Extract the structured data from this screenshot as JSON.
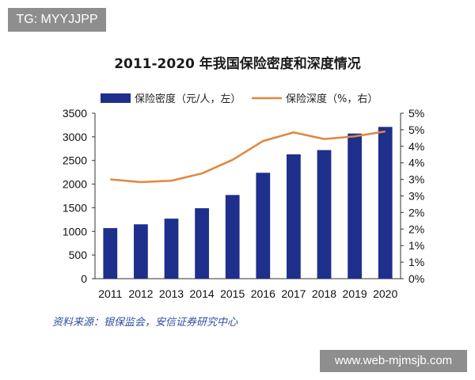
{
  "watermark_tl": "TG: MYYJJPP",
  "watermark_br": "www.web-mjmsjb.com",
  "source_note": "资料来源：银保监会，安信证券研究中心",
  "chart_data": {
    "type": "bar",
    "title": "2011-2020 年我国保险密度和深度情况",
    "categories": [
      "2011",
      "2012",
      "2013",
      "2014",
      "2015",
      "2016",
      "2017",
      "2018",
      "2019",
      "2020"
    ],
    "series": [
      {
        "name": "保险密度（元/人，左）",
        "type": "bar",
        "axis": "left",
        "color": "#1f2f8c",
        "values": [
          1070,
          1150,
          1270,
          1490,
          1770,
          2240,
          2630,
          2720,
          3070,
          3210
        ]
      },
      {
        "name": "保险深度（%，右）",
        "type": "line",
        "axis": "right",
        "color": "#e2863c",
        "values": [
          3.0,
          2.92,
          2.96,
          3.18,
          3.59,
          4.16,
          4.42,
          4.22,
          4.3,
          4.45
        ]
      }
    ],
    "y_left": {
      "ylim": [
        0,
        3500
      ],
      "ticks": [
        "0",
        "500",
        "1000",
        "1500",
        "2000",
        "2500",
        "3000",
        "3500"
      ]
    },
    "y_right": {
      "ylim": [
        0,
        5
      ],
      "ticks": [
        "0%",
        "1%",
        "1%",
        "2%",
        "2%",
        "3%",
        "3%",
        "4%",
        "4%",
        "5%",
        "5%"
      ]
    },
    "grid": false,
    "legend_position": "top"
  }
}
